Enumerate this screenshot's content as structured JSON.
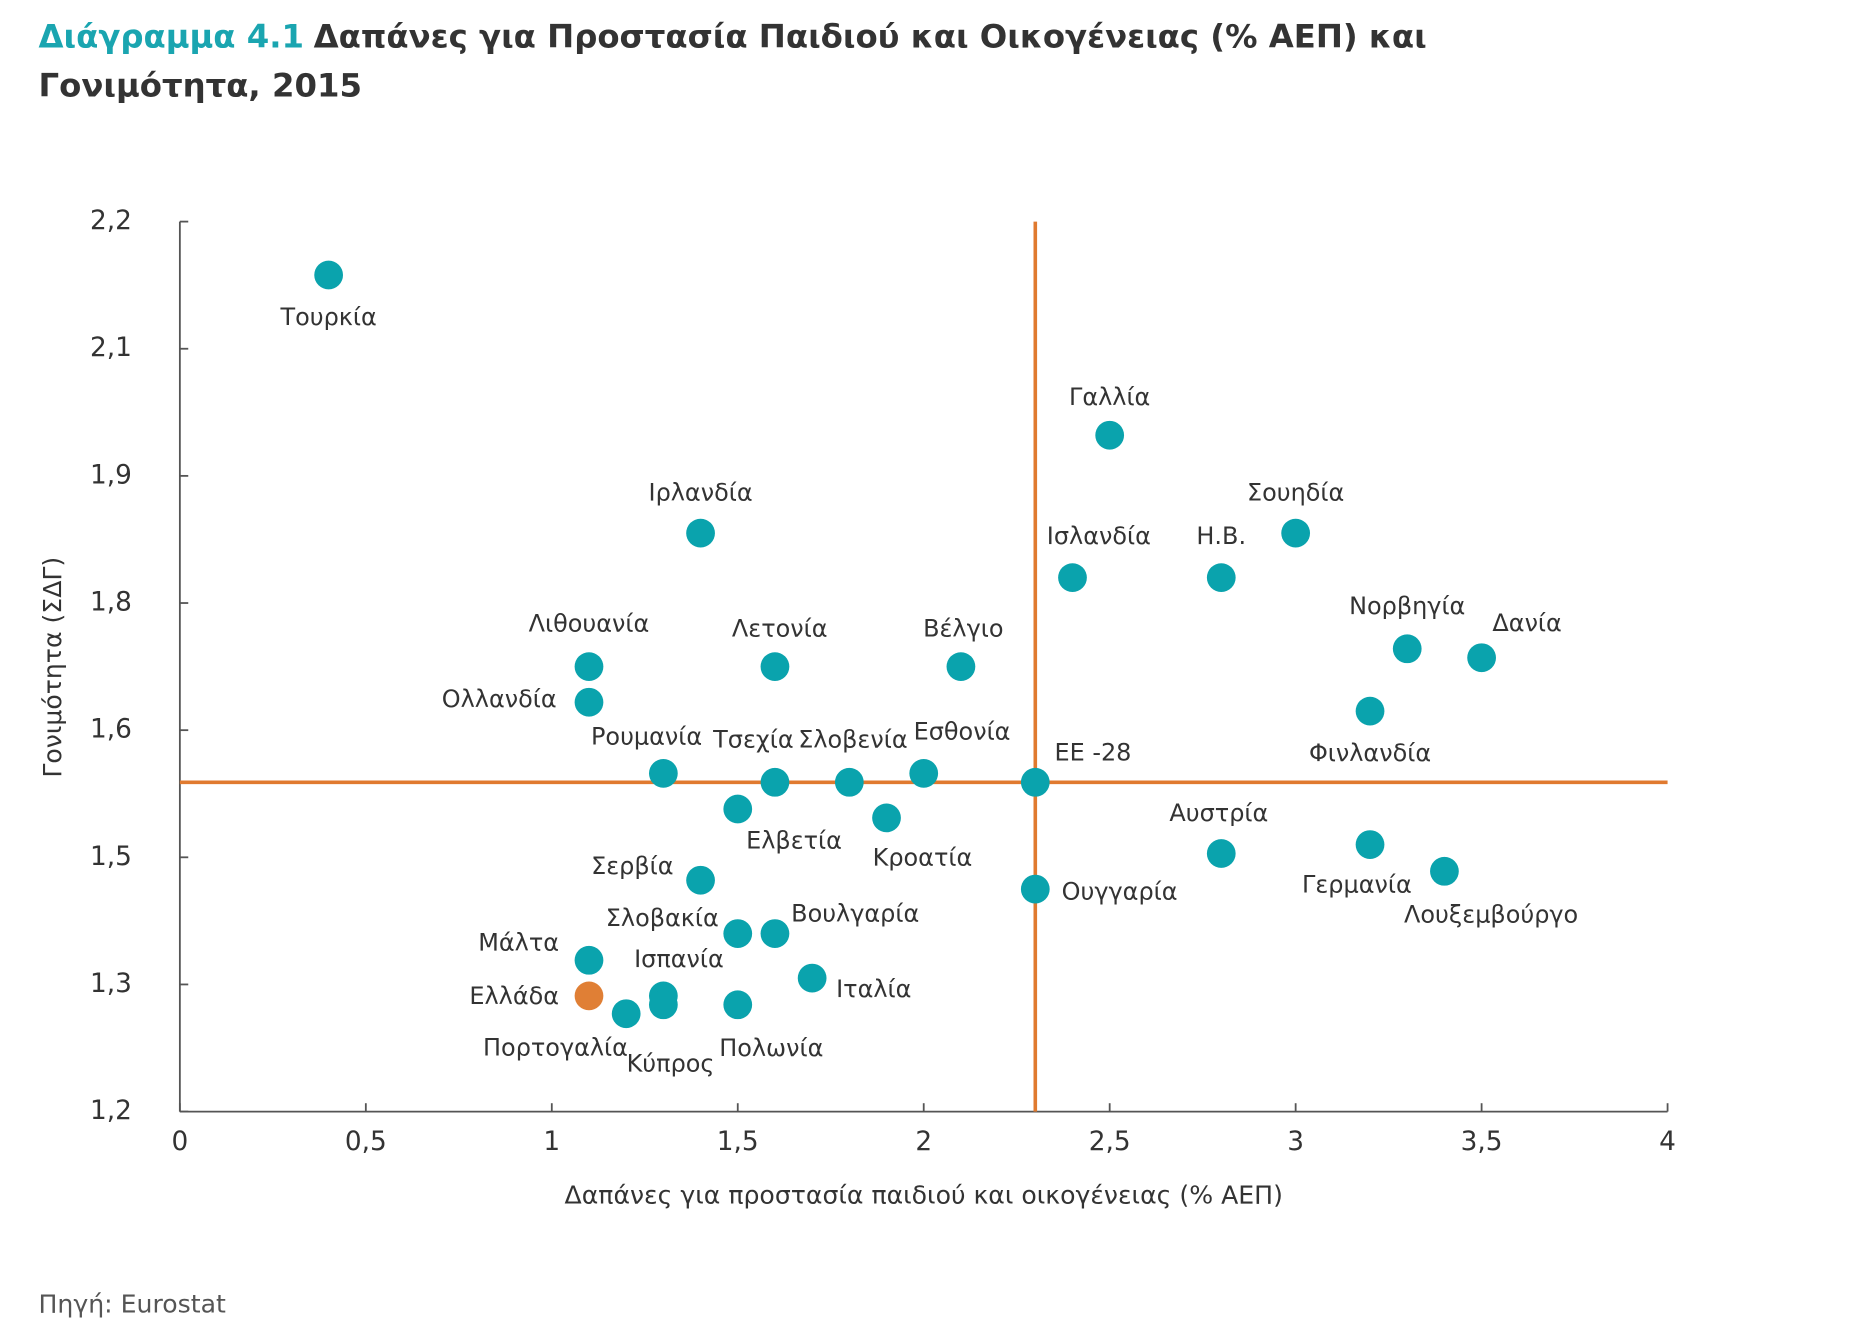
{
  "chart_data": {
    "type": "scatter",
    "title_label": "Διάγραμμα 4.1",
    "title": [
      "Δαπάνες για Προστασία Παιδιού και Οικογένειας (% ΑΕΠ) και",
      "Γονιμότητα, 2015"
    ],
    "x_label": "Δαπάνες για προστασία παιδιού και οικογένειας (% ΑΕΠ)",
    "y_label": "Γονιμότητα (ΣΔΓ)",
    "source": "Πηγή: Eurostat",
    "labels": [
      "Τουρκία",
      "Γαλλία",
      "Ιρλανδία",
      "Ισλανδία",
      "Η.Β.",
      "Σουηδία",
      "Νορβηγία",
      "Δανία",
      "Φινλανδία",
      "Λιθουανία",
      "Λετονία",
      "Βέλγιο",
      "Ολλανδία",
      "Ρουμανία",
      "Τσεχία",
      "Σλοβενία",
      "Εσθονία",
      "ΕΕ -28",
      "Ελβετία",
      "Κροατία",
      "Αυστρία",
      "Γερμανία",
      "Λουξεμβούργο",
      "Σερβία",
      "Ουγγαρία",
      "Σλοβακία",
      "Βουλγαρία",
      "Μάλτα",
      "Ιταλία",
      "Ισπανία",
      "Ελλάδα",
      "Κύπρος",
      "Πολωνία",
      "Πορτογαλία"
    ],
    "x": [
      0.4,
      2.5,
      1.4,
      2.4,
      2.8,
      3.0,
      3.3,
      3.5,
      3.2,
      1.1,
      1.6,
      2.1,
      1.1,
      1.3,
      1.6,
      1.8,
      2.0,
      2.3,
      1.5,
      1.9,
      2.8,
      3.2,
      3.4,
      1.4,
      2.3,
      1.5,
      1.6,
      1.1,
      1.7,
      1.3,
      1.1,
      1.3,
      1.5,
      1.2
    ],
    "values": [
      2.14,
      1.96,
      1.85,
      1.8,
      1.8,
      1.85,
      1.72,
      1.71,
      1.65,
      1.7,
      1.7,
      1.7,
      1.66,
      1.58,
      1.57,
      1.57,
      1.58,
      1.57,
      1.54,
      1.53,
      1.49,
      1.5,
      1.47,
      1.46,
      1.45,
      1.4,
      1.4,
      1.37,
      1.35,
      1.33,
      1.33,
      1.32,
      1.32,
      1.31
    ],
    "colors": [
      "#0aa3ad",
      "#0aa3ad",
      "#0aa3ad",
      "#0aa3ad",
      "#0aa3ad",
      "#0aa3ad",
      "#0aa3ad",
      "#0aa3ad",
      "#0aa3ad",
      "#0aa3ad",
      "#0aa3ad",
      "#0aa3ad",
      "#0aa3ad",
      "#0aa3ad",
      "#0aa3ad",
      "#0aa3ad",
      "#0aa3ad",
      "#0aa3ad",
      "#0aa3ad",
      "#0aa3ad",
      "#0aa3ad",
      "#0aa3ad",
      "#0aa3ad",
      "#0aa3ad",
      "#0aa3ad",
      "#0aa3ad",
      "#0aa3ad",
      "#0aa3ad",
      "#0aa3ad",
      "#0aa3ad",
      "#e07f35",
      "#0aa3ad",
      "#0aa3ad",
      "#0aa3ad"
    ],
    "reference_lines": {
      "x": 2.3,
      "y": 1.57,
      "color": "#e07a2f"
    },
    "xlim": [
      0,
      4
    ],
    "xticks": [
      0,
      {
        "value": 0.5,
        "label": "0,5"
      },
      1,
      {
        "value": 1.5,
        "label": "1,5"
      },
      2,
      {
        "value": 2.5,
        "label": "2,5"
      },
      3,
      {
        "value": 3.5,
        "label": "3,5"
      },
      4
    ],
    "ylim": [
      1.2,
      2.2
    ],
    "yticks": [
      {
        "value": 1.2,
        "label": "1,2"
      },
      {
        "value": 1.342857,
        "label": "1,3"
      },
      {
        "value": 1.485714,
        "label": "1,5"
      },
      {
        "value": 1.628571,
        "label": "1,6"
      },
      {
        "value": 1.771429,
        "label": "1,8"
      },
      {
        "value": 1.914286,
        "label": "1,9"
      },
      {
        "value": 2.057143,
        "label": "2,1"
      },
      {
        "value": 2.2,
        "label": "2,2"
      }
    ]
  }
}
